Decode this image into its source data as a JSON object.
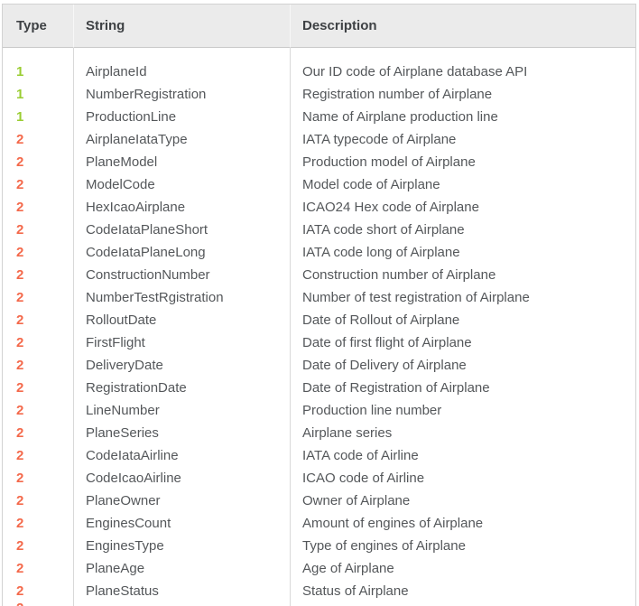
{
  "table": {
    "columns": [
      {
        "id": "type",
        "label": "Type"
      },
      {
        "id": "string",
        "label": "String"
      },
      {
        "id": "description",
        "label": "Description"
      }
    ],
    "type_colors": {
      "1": "#9acd32",
      "2": "#f4694b"
    },
    "rows": [
      {
        "type": "1",
        "string": "AirplaneId",
        "description": "Our ID code of Airplane database API"
      },
      {
        "type": "1",
        "string": "NumberRegistration",
        "description": "Registration number of Airplane"
      },
      {
        "type": "1",
        "string": "ProductionLine",
        "description": "Name of Airplane production line"
      },
      {
        "type": "2",
        "string": "AirplaneIataType",
        "description": "IATA typecode of Airplane"
      },
      {
        "type": "2",
        "string": "PlaneModel",
        "description": "Production model of Airplane"
      },
      {
        "type": "2",
        "string": "ModelCode",
        "description": "Model code of Airplane"
      },
      {
        "type": "2",
        "string": "HexIcaoAirplane",
        "description": "ICAO24 Hex code of Airplane"
      },
      {
        "type": "2",
        "string": "CodeIataPlaneShort",
        "description": "IATA code short of Airplane"
      },
      {
        "type": "2",
        "string": "CodeIataPlaneLong",
        "description": "IATA code long of Airplane"
      },
      {
        "type": "2",
        "string": "ConstructionNumber",
        "description": "Construction number of Airplane"
      },
      {
        "type": "2",
        "string": "NumberTestRgistration",
        "description": "Number of test registration of Airplane"
      },
      {
        "type": "2",
        "string": "RolloutDate",
        "description": "Date of Rollout of Airplane"
      },
      {
        "type": "2",
        "string": "FirstFlight",
        "description": "Date of first flight of Airplane"
      },
      {
        "type": "2",
        "string": "DeliveryDate",
        "description": "Date of Delivery of Airplane"
      },
      {
        "type": "2",
        "string": "RegistrationDate",
        "description": "Date of Registration of Airplane"
      },
      {
        "type": "2",
        "string": "LineNumber",
        "description": "Production line number"
      },
      {
        "type": "2",
        "string": "PlaneSeries",
        "description": "Airplane series"
      },
      {
        "type": "2",
        "string": "CodeIataAirline",
        "description": "IATA code of Airline"
      },
      {
        "type": "2",
        "string": "CodeIcaoAirline",
        "description": "ICAO code of Airline"
      },
      {
        "type": "2",
        "string": "PlaneOwner",
        "description": "Owner of Airplane"
      },
      {
        "type": "2",
        "string": "EnginesCount",
        "description": "Amount of engines of Airplane"
      },
      {
        "type": "2",
        "string": "EnginesType",
        "description": "Type of engines of Airplane"
      },
      {
        "type": "2",
        "string": "PlaneAge",
        "description": "Age of Airplane"
      },
      {
        "type": "2",
        "string": "PlaneStatus",
        "description": "Status of Airplane"
      },
      {
        "type": "2",
        "string": "",
        "description": "",
        "partial": true
      }
    ]
  }
}
